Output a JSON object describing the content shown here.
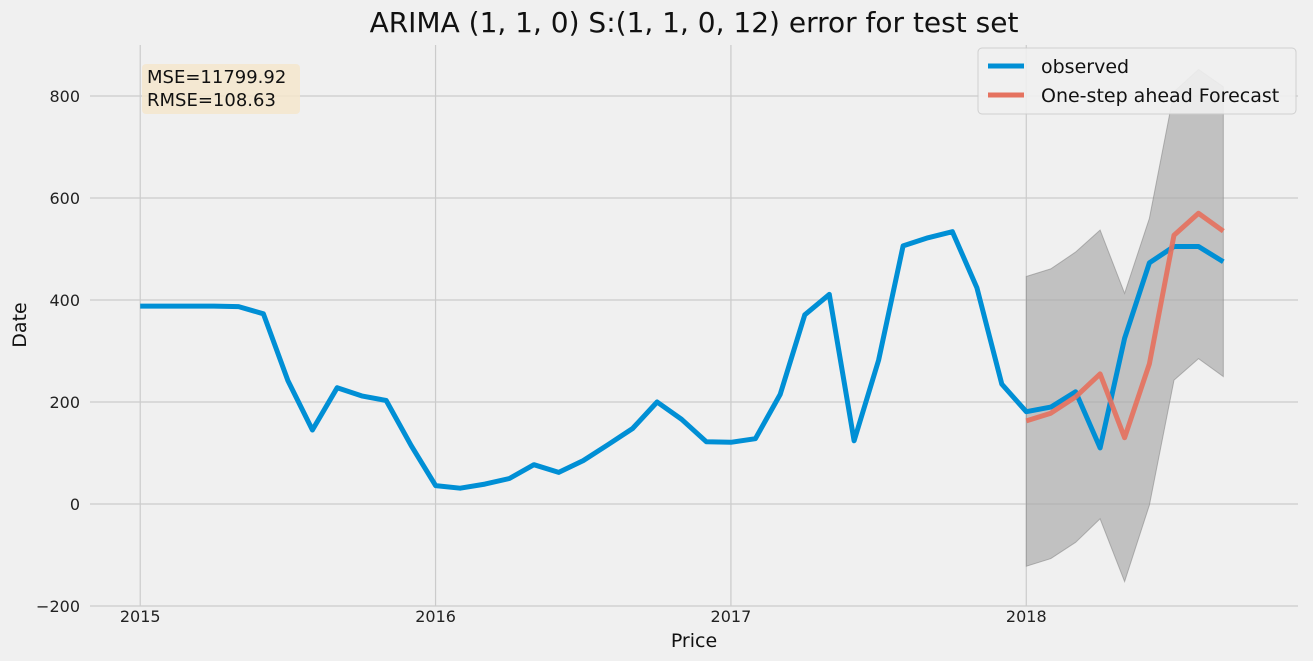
{
  "chart_data": {
    "type": "line",
    "title": "ARIMA (1, 1, 0) S:(1, 1, 0, 12) error for test set",
    "xlabel": "Price",
    "ylabel": "Date",
    "xlim": [
      2014.83,
      2018.92
    ],
    "ylim": [
      -200,
      900
    ],
    "x_ticks": [
      2015,
      2016,
      2017,
      2018
    ],
    "y_ticks": [
      -200,
      0,
      200,
      400,
      600,
      800
    ],
    "y_tick_labels": [
      "−200",
      "0",
      "200",
      "400",
      "600",
      "800"
    ],
    "grid": true,
    "legend": "top-right",
    "metrics": {
      "mse": "MSE=11799.92",
      "rmse": "RMSE=108.63"
    },
    "metrics_box_color": "#f5e6cc",
    "series": [
      {
        "name": "observed",
        "color": "#008fd5",
        "x": [
          2015.0,
          2015.083,
          2015.167,
          2015.25,
          2015.333,
          2015.417,
          2015.5,
          2015.583,
          2015.667,
          2015.75,
          2015.833,
          2015.917,
          2016.0,
          2016.083,
          2016.167,
          2016.25,
          2016.333,
          2016.417,
          2016.5,
          2016.583,
          2016.667,
          2016.75,
          2016.833,
          2016.917,
          2017.0,
          2017.083,
          2017.167,
          2017.25,
          2017.333,
          2017.417,
          2017.5,
          2017.583,
          2017.667,
          2017.75,
          2017.833,
          2017.917,
          2018.0,
          2018.083,
          2018.167,
          2018.25,
          2018.333,
          2018.417,
          2018.5,
          2018.583,
          2018.667
        ],
        "values": [
          388,
          388,
          388,
          388,
          387,
          373,
          242,
          145,
          228,
          212,
          203,
          115,
          36,
          31,
          39,
          50,
          77,
          62,
          85,
          116,
          148,
          200,
          166,
          122,
          121,
          128,
          215,
          371,
          411,
          124,
          282,
          506,
          522,
          534,
          424,
          235,
          181,
          190,
          220,
          110,
          325,
          473,
          505,
          505,
          475
        ]
      },
      {
        "name": "One-step ahead Forecast",
        "color": "#e5725f",
        "x": [
          2018.0,
          2018.083,
          2018.167,
          2018.25,
          2018.333,
          2018.417,
          2018.5,
          2018.583,
          2018.667
        ],
        "values": [
          163,
          178,
          210,
          255,
          130,
          275,
          527,
          570,
          535
        ]
      }
    ],
    "confidence_interval": {
      "color": "#a8a8a8",
      "x": [
        2018.0,
        2018.083,
        2018.167,
        2018.25,
        2018.333,
        2018.417,
        2018.5,
        2018.583,
        2018.667
      ],
      "lower": [
        -122,
        -107,
        -75,
        -29,
        -152,
        -2,
        243,
        285,
        250
      ],
      "upper": [
        446,
        461,
        494,
        537,
        413,
        560,
        808,
        852,
        818
      ]
    }
  }
}
